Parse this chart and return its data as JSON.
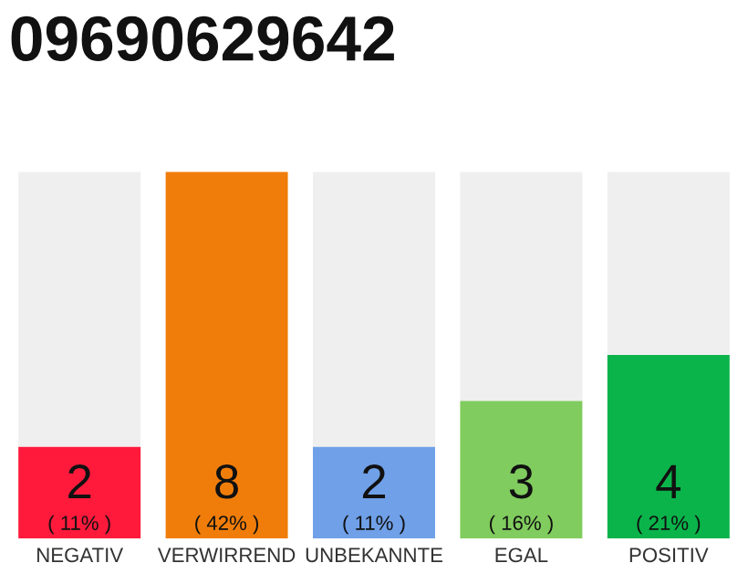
{
  "chart_data": {
    "type": "bar",
    "title": "09690629642",
    "stacked": true,
    "categories": [
      "NEGATIV",
      "VERWIRREND",
      "UNBEKANNTE",
      "EGAL",
      "POSITIV"
    ],
    "series": [
      {
        "colors": [
          "#ff1a3c",
          "#f07d0a",
          "#6fa0e8",
          "#80cc5e",
          "#0ab44a"
        ],
        "values": [
          2,
          8,
          2,
          3,
          4
        ],
        "value_labels": [
          "2\n( 11% )",
          "8\n( 42% )",
          "2\n( 11% )",
          "3\n( 16% )",
          "4\n( 21% )"
        ]
      },
      {
        "color": "#efefef",
        "values": [
          6,
          0,
          6,
          5,
          4
        ]
      }
    ],
    "ylim": [
      0,
      8
    ],
    "tick_labels": "x",
    "grid": false,
    "legend": false
  }
}
